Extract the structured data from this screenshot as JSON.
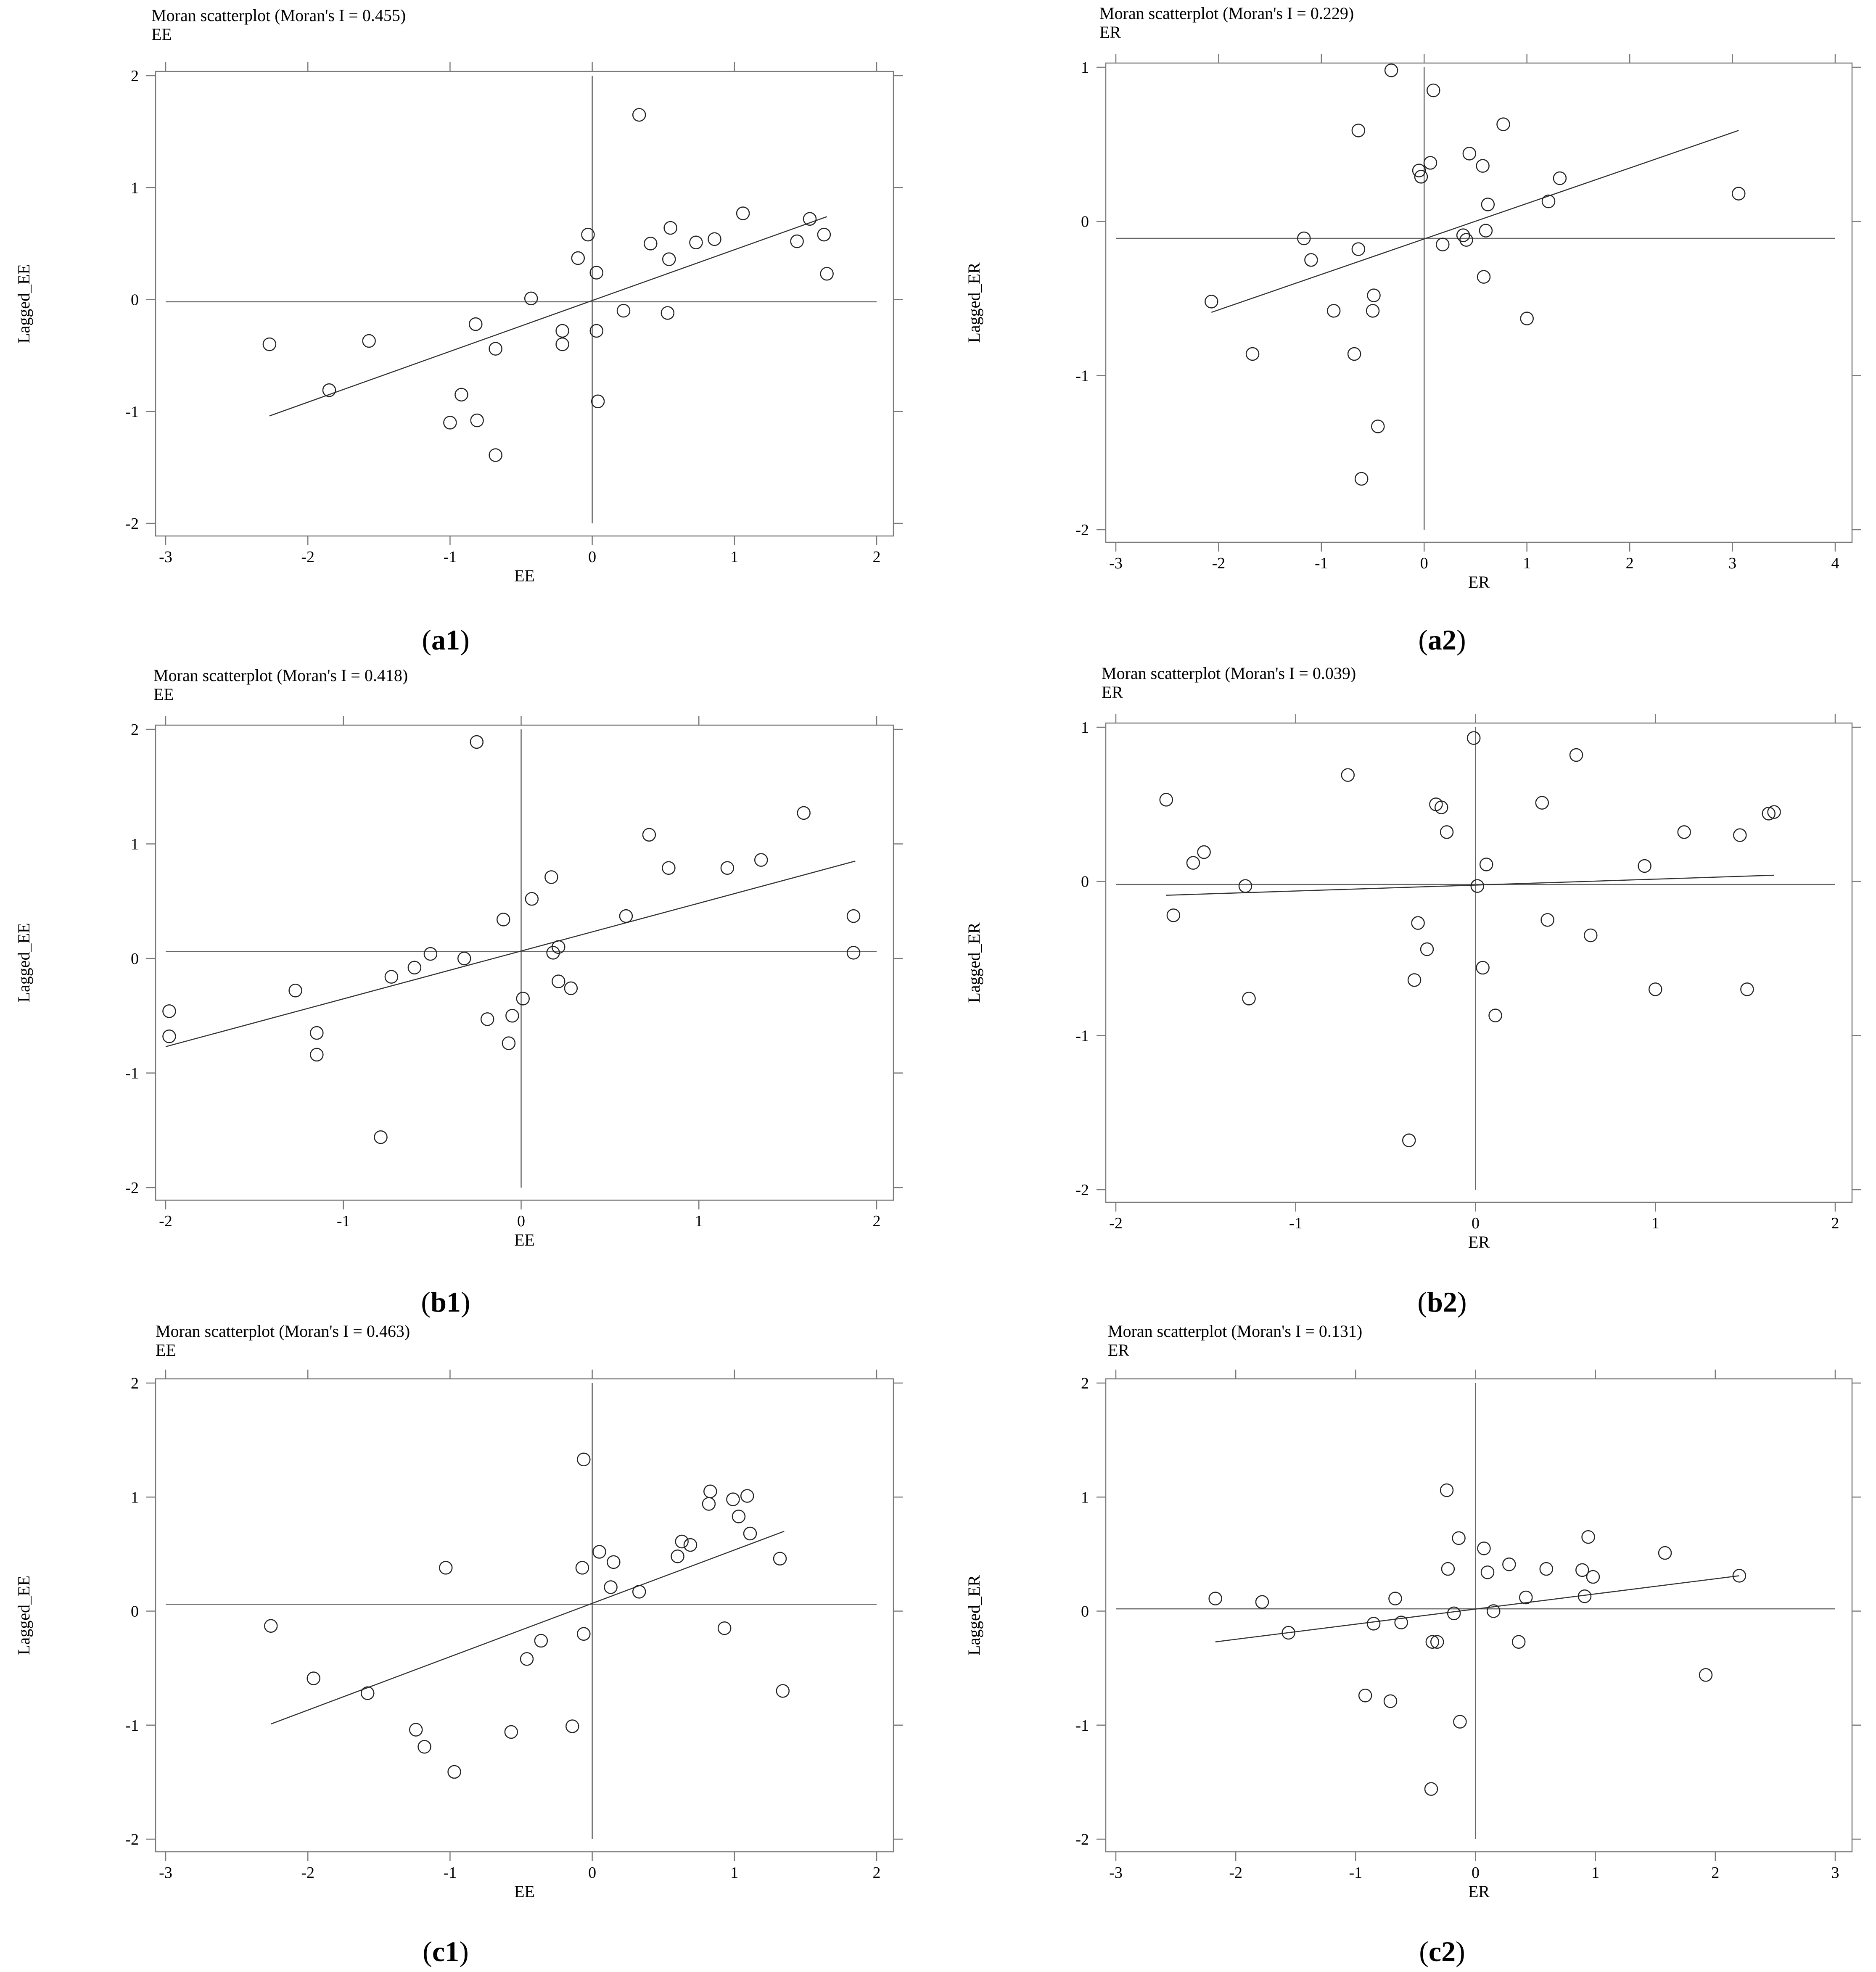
{
  "figure": {
    "panels": [
      {
        "id": "a1",
        "caption": "a1",
        "chart_data": {
          "type": "scatter",
          "title": "Moran scatterplot (Moran's I = 0.455)",
          "subtitle": "EE",
          "xlabel": "EE",
          "ylabel": "Lagged_EE",
          "xlim": [
            -3,
            2
          ],
          "ylim": [
            -2,
            2
          ],
          "xticks": [
            -3,
            -2,
            -1,
            0,
            1,
            2
          ],
          "yticks": [
            -2,
            -1,
            0,
            1,
            2
          ],
          "hline": -0.02,
          "vline": 0,
          "fit_line": {
            "x": [
              -2.27,
              1.65
            ],
            "y": [
              -1.04,
              0.74
            ]
          },
          "points": [
            {
              "x": -2.27,
              "y": -0.4
            },
            {
              "x": -1.85,
              "y": -0.81
            },
            {
              "x": -1.57,
              "y": -0.37
            },
            {
              "x": -1.0,
              "y": -1.1
            },
            {
              "x": -0.92,
              "y": -0.85
            },
            {
              "x": -0.82,
              "y": -0.22
            },
            {
              "x": -0.81,
              "y": -1.08
            },
            {
              "x": -0.68,
              "y": -0.44
            },
            {
              "x": -0.68,
              "y": -1.39
            },
            {
              "x": -0.43,
              "y": 0.01
            },
            {
              "x": -0.21,
              "y": -0.4
            },
            {
              "x": -0.21,
              "y": -0.28
            },
            {
              "x": -0.1,
              "y": 0.37
            },
            {
              "x": -0.03,
              "y": 0.58
            },
            {
              "x": 0.03,
              "y": 0.24
            },
            {
              "x": 0.03,
              "y": -0.28
            },
            {
              "x": 0.04,
              "y": -0.91
            },
            {
              "x": 0.22,
              "y": -0.1
            },
            {
              "x": 0.33,
              "y": 1.65
            },
            {
              "x": 0.41,
              "y": 0.5
            },
            {
              "x": 0.53,
              "y": -0.12
            },
            {
              "x": 0.54,
              "y": 0.36
            },
            {
              "x": 0.55,
              "y": 0.64
            },
            {
              "x": 0.73,
              "y": 0.51
            },
            {
              "x": 0.86,
              "y": 0.54
            },
            {
              "x": 1.06,
              "y": 0.77
            },
            {
              "x": 1.44,
              "y": 0.52
            },
            {
              "x": 1.53,
              "y": 0.72
            },
            {
              "x": 1.63,
              "y": 0.58
            },
            {
              "x": 1.65,
              "y": 0.23
            }
          ]
        }
      },
      {
        "id": "a2",
        "caption": "a2",
        "chart_data": {
          "type": "scatter",
          "title": "Moran scatterplot (Moran's I = 0.229)",
          "subtitle": "ER",
          "xlabel": "ER",
          "ylabel": "Lagged_ER",
          "xlim": [
            -3,
            4
          ],
          "ylim": [
            -2,
            1
          ],
          "xticks": [
            -3,
            -2,
            -1,
            0,
            1,
            2,
            3,
            4
          ],
          "yticks": [
            -2,
            -1,
            0,
            1
          ],
          "hline": -0.11,
          "vline": 0,
          "fit_line": {
            "x": [
              -2.07,
              3.06
            ],
            "y": [
              -0.59,
              0.59
            ]
          },
          "points": [
            {
              "x": -2.07,
              "y": -0.52
            },
            {
              "x": -1.67,
              "y": -0.86
            },
            {
              "x": -1.17,
              "y": -0.11
            },
            {
              "x": -1.1,
              "y": -0.25
            },
            {
              "x": -0.88,
              "y": -0.58
            },
            {
              "x": -0.68,
              "y": -0.86
            },
            {
              "x": -0.64,
              "y": -0.18
            },
            {
              "x": -0.64,
              "y": 0.59
            },
            {
              "x": -0.61,
              "y": -1.67
            },
            {
              "x": -0.5,
              "y": -0.58
            },
            {
              "x": -0.49,
              "y": -0.48
            },
            {
              "x": -0.45,
              "y": -1.33
            },
            {
              "x": -0.32,
              "y": 0.98
            },
            {
              "x": -0.05,
              "y": 0.33
            },
            {
              "x": -0.03,
              "y": 0.29
            },
            {
              "x": 0.06,
              "y": 0.38
            },
            {
              "x": 0.09,
              "y": 0.85
            },
            {
              "x": 0.18,
              "y": -0.15
            },
            {
              "x": 0.38,
              "y": -0.09
            },
            {
              "x": 0.41,
              "y": -0.12
            },
            {
              "x": 0.44,
              "y": 0.44
            },
            {
              "x": 0.57,
              "y": 0.36
            },
            {
              "x": 0.58,
              "y": -0.36
            },
            {
              "x": 0.6,
              "y": -0.06
            },
            {
              "x": 0.62,
              "y": 0.11
            },
            {
              "x": 1.0,
              "y": -0.63
            },
            {
              "x": 0.77,
              "y": 0.63
            },
            {
              "x": 1.21,
              "y": 0.13
            },
            {
              "x": 1.32,
              "y": 0.28
            },
            {
              "x": 3.06,
              "y": 0.18
            }
          ]
        }
      },
      {
        "id": "b1",
        "caption": "b1",
        "chart_data": {
          "type": "scatter",
          "title": "Moran scatterplot (Moran's I = 0.418)",
          "subtitle": "EE",
          "xlabel": "EE",
          "ylabel": "Lagged_EE",
          "xlim": [
            -2,
            2
          ],
          "ylim": [
            -2,
            2
          ],
          "xticks": [
            -2,
            -1,
            0,
            1,
            2
          ],
          "yticks": [
            -2,
            -1,
            0,
            1,
            2
          ],
          "hline": 0.06,
          "vline": 0,
          "fit_line": {
            "x": [
              -2.0,
              1.88
            ],
            "y": [
              -0.77,
              0.85
            ]
          },
          "points": [
            {
              "x": -1.98,
              "y": -0.46
            },
            {
              "x": -1.98,
              "y": -0.68
            },
            {
              "x": -1.27,
              "y": -0.28
            },
            {
              "x": -1.15,
              "y": -0.65
            },
            {
              "x": -1.15,
              "y": -0.84
            },
            {
              "x": -0.79,
              "y": -1.56
            },
            {
              "x": -0.73,
              "y": -0.16
            },
            {
              "x": -0.6,
              "y": -0.08
            },
            {
              "x": -0.51,
              "y": 0.04
            },
            {
              "x": -0.32,
              "y": 0.0
            },
            {
              "x": -0.25,
              "y": 1.89
            },
            {
              "x": -0.19,
              "y": -0.53
            },
            {
              "x": -0.1,
              "y": 0.34
            },
            {
              "x": -0.07,
              "y": -0.74
            },
            {
              "x": -0.05,
              "y": -0.5
            },
            {
              "x": 0.01,
              "y": -0.35
            },
            {
              "x": 0.06,
              "y": 0.52
            },
            {
              "x": 0.17,
              "y": 0.71
            },
            {
              "x": 0.18,
              "y": 0.05
            },
            {
              "x": 0.21,
              "y": 0.1
            },
            {
              "x": 0.21,
              "y": -0.2
            },
            {
              "x": 0.28,
              "y": -0.26
            },
            {
              "x": 0.59,
              "y": 0.37
            },
            {
              "x": 0.72,
              "y": 1.08
            },
            {
              "x": 0.83,
              "y": 0.79
            },
            {
              "x": 1.16,
              "y": 0.79
            },
            {
              "x": 1.35,
              "y": 0.86
            },
            {
              "x": 1.59,
              "y": 1.27
            },
            {
              "x": 1.87,
              "y": 0.37
            },
            {
              "x": 1.87,
              "y": 0.05
            }
          ]
        }
      },
      {
        "id": "b2",
        "caption": "b2",
        "chart_data": {
          "type": "scatter",
          "title": "Moran scatterplot (Moran's I = 0.039)",
          "subtitle": "ER",
          "xlabel": "ER",
          "ylabel": "Lagged_ER",
          "xlim": [
            -2,
            2
          ],
          "ylim": [
            -2,
            1
          ],
          "xticks": [
            -2,
            -1,
            0,
            1,
            2
          ],
          "yticks": [
            -2,
            -1,
            0,
            1
          ],
          "hline": -0.02,
          "vline": 0,
          "fit_line": {
            "x": [
              -1.72,
              1.66
            ],
            "y": [
              -0.09,
              0.04
            ]
          },
          "points": [
            {
              "x": -1.72,
              "y": 0.53
            },
            {
              "x": -1.68,
              "y": -0.22
            },
            {
              "x": -1.57,
              "y": 0.12
            },
            {
              "x": -1.51,
              "y": 0.19
            },
            {
              "x": -1.28,
              "y": -0.03
            },
            {
              "x": -1.26,
              "y": -0.76
            },
            {
              "x": -0.71,
              "y": 0.69
            },
            {
              "x": -0.37,
              "y": -1.68
            },
            {
              "x": -0.34,
              "y": -0.64
            },
            {
              "x": -0.32,
              "y": -0.27
            },
            {
              "x": -0.27,
              "y": -0.44
            },
            {
              "x": -0.22,
              "y": 0.5
            },
            {
              "x": -0.19,
              "y": 0.48
            },
            {
              "x": -0.16,
              "y": 0.32
            },
            {
              "x": -0.01,
              "y": 0.93
            },
            {
              "x": 0.01,
              "y": -0.03
            },
            {
              "x": 0.04,
              "y": -0.56
            },
            {
              "x": 0.06,
              "y": 0.11
            },
            {
              "x": 0.11,
              "y": -0.87
            },
            {
              "x": 0.37,
              "y": 0.51
            },
            {
              "x": 0.4,
              "y": -0.25
            },
            {
              "x": 0.56,
              "y": 0.82
            },
            {
              "x": 0.64,
              "y": -0.35
            },
            {
              "x": 0.94,
              "y": 0.1
            },
            {
              "x": 1.0,
              "y": -0.7
            },
            {
              "x": 1.16,
              "y": 0.32
            },
            {
              "x": 1.47,
              "y": 0.3
            },
            {
              "x": 1.51,
              "y": -0.7
            },
            {
              "x": 1.63,
              "y": 0.44
            },
            {
              "x": 1.66,
              "y": 0.45
            }
          ]
        }
      },
      {
        "id": "c1",
        "caption": "c1",
        "chart_data": {
          "type": "scatter",
          "title": "Moran scatterplot (Moran's I = 0.463)",
          "subtitle": "EE",
          "xlabel": "EE",
          "ylabel": "Lagged_EE",
          "xlim": [
            -3,
            2
          ],
          "ylim": [
            -2,
            2
          ],
          "xticks": [
            -3,
            -2,
            -1,
            0,
            1,
            2
          ],
          "yticks": [
            -2,
            -1,
            0,
            1,
            2
          ],
          "hline": 0.06,
          "vline": 0,
          "fit_line": {
            "x": [
              -2.26,
              1.35
            ],
            "y": [
              -0.99,
              0.7
            ]
          },
          "points": [
            {
              "x": -2.26,
              "y": -0.13
            },
            {
              "x": -1.96,
              "y": -0.59
            },
            {
              "x": -1.58,
              "y": -0.72
            },
            {
              "x": -1.24,
              "y": -1.04
            },
            {
              "x": -1.18,
              "y": -1.19
            },
            {
              "x": -1.03,
              "y": 0.38
            },
            {
              "x": -0.97,
              "y": -1.41
            },
            {
              "x": -0.57,
              "y": -1.06
            },
            {
              "x": -0.46,
              "y": -0.42
            },
            {
              "x": -0.36,
              "y": -0.26
            },
            {
              "x": -0.14,
              "y": -1.01
            },
            {
              "x": -0.07,
              "y": 0.38
            },
            {
              "x": -0.06,
              "y": -0.2
            },
            {
              "x": -0.06,
              "y": 1.33
            },
            {
              "x": 0.05,
              "y": 0.52
            },
            {
              "x": 0.13,
              "y": 0.21
            },
            {
              "x": 0.15,
              "y": 0.43
            },
            {
              "x": 0.33,
              "y": 0.17
            },
            {
              "x": 0.6,
              "y": 0.48
            },
            {
              "x": 0.63,
              "y": 0.61
            },
            {
              "x": 0.69,
              "y": 0.58
            },
            {
              "x": 0.82,
              "y": 0.94
            },
            {
              "x": 0.83,
              "y": 1.05
            },
            {
              "x": 0.93,
              "y": -0.15
            },
            {
              "x": 0.99,
              "y": 0.98
            },
            {
              "x": 1.03,
              "y": 0.83
            },
            {
              "x": 1.09,
              "y": 1.01
            },
            {
              "x": 1.11,
              "y": 0.68
            },
            {
              "x": 1.32,
              "y": 0.46
            },
            {
              "x": 1.34,
              "y": -0.7
            }
          ]
        }
      },
      {
        "id": "c2",
        "caption": "c2",
        "chart_data": {
          "type": "scatter",
          "title": "Moran scatterplot (Moran's I = 0.131)",
          "subtitle": "ER",
          "xlabel": "ER",
          "ylabel": "Lagged_ER",
          "xlim": [
            -3,
            3
          ],
          "ylim": [
            -2,
            2
          ],
          "xticks": [
            -3,
            -2,
            -1,
            0,
            1,
            2,
            3
          ],
          "yticks": [
            -2,
            -1,
            0,
            1,
            2
          ],
          "hline": 0.02,
          "vline": 0,
          "fit_line": {
            "x": [
              -2.17,
              2.2
            ],
            "y": [
              -0.27,
              0.31
            ]
          },
          "points": [
            {
              "x": -2.17,
              "y": 0.11
            },
            {
              "x": -1.78,
              "y": 0.08
            },
            {
              "x": -1.56,
              "y": -0.19
            },
            {
              "x": -0.92,
              "y": -0.74
            },
            {
              "x": -0.85,
              "y": -0.11
            },
            {
              "x": -0.71,
              "y": -0.79
            },
            {
              "x": -0.67,
              "y": 0.11
            },
            {
              "x": -0.62,
              "y": -0.1
            },
            {
              "x": -0.37,
              "y": -1.56
            },
            {
              "x": -0.36,
              "y": -0.27
            },
            {
              "x": -0.32,
              "y": -0.27
            },
            {
              "x": -0.24,
              "y": 1.06
            },
            {
              "x": -0.23,
              "y": 0.37
            },
            {
              "x": -0.18,
              "y": -0.02
            },
            {
              "x": -0.14,
              "y": 0.64
            },
            {
              "x": -0.13,
              "y": -0.97
            },
            {
              "x": 0.07,
              "y": 0.55
            },
            {
              "x": 0.1,
              "y": 0.34
            },
            {
              "x": 0.15,
              "y": 0.0
            },
            {
              "x": 0.28,
              "y": 0.41
            },
            {
              "x": 0.36,
              "y": -0.27
            },
            {
              "x": 0.42,
              "y": 0.12
            },
            {
              "x": 0.59,
              "y": 0.37
            },
            {
              "x": 0.89,
              "y": 0.36
            },
            {
              "x": 0.91,
              "y": 0.13
            },
            {
              "x": 0.94,
              "y": 0.65
            },
            {
              "x": 0.98,
              "y": 0.3
            },
            {
              "x": 1.58,
              "y": 0.51
            },
            {
              "x": 1.92,
              "y": -0.56
            },
            {
              "x": 2.2,
              "y": 0.31
            }
          ]
        }
      }
    ]
  }
}
